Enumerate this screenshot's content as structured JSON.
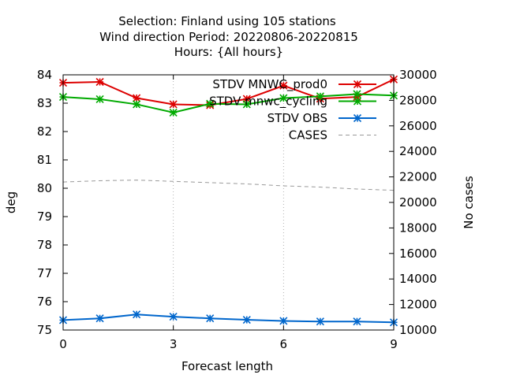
{
  "chart_data": {
    "type": "line",
    "title": [
      "Selection: Finland using   105 stations",
      "Wind direction   Period: 20220806-20220815",
      "Hours: {All hours}"
    ],
    "xlabel": "Forecast length",
    "ylabel": "deg",
    "y2label": "No cases",
    "xlim": [
      0,
      9
    ],
    "ylim": [
      75,
      84
    ],
    "y2lim": [
      10000,
      30000
    ],
    "xticks": [
      0,
      3,
      6,
      9
    ],
    "yticks": [
      75,
      76,
      77,
      78,
      79,
      80,
      81,
      82,
      83,
      84
    ],
    "y2ticks": [
      10000,
      12000,
      14000,
      16000,
      18000,
      20000,
      22000,
      24000,
      26000,
      28000,
      30000
    ],
    "grid": true,
    "legend_position": "top-right",
    "x": [
      0,
      1,
      2,
      3,
      4,
      5,
      6,
      7,
      8,
      9
    ],
    "series": [
      {
        "name": "STDV MNWC_prod0",
        "axis": "y",
        "color": "#dd0000",
        "marker": "x",
        "dashed": false,
        "values": [
          83.72,
          83.75,
          83.18,
          82.96,
          82.93,
          83.15,
          83.62,
          83.16,
          83.22,
          83.84
        ]
      },
      {
        "name": "STDV mnwc_cycling",
        "axis": "y",
        "color": "#00aa00",
        "marker": "x",
        "dashed": false,
        "values": [
          83.22,
          83.14,
          82.96,
          82.67,
          82.98,
          82.96,
          83.18,
          83.24,
          83.32,
          83.27
        ]
      },
      {
        "name": "STDV OBS",
        "axis": "y",
        "color": "#0066cc",
        "marker": "x",
        "dashed": false,
        "values": [
          75.35,
          75.41,
          75.55,
          75.47,
          75.41,
          75.36,
          75.32,
          75.3,
          75.3,
          75.27
        ]
      },
      {
        "name": "CASES",
        "axis": "y2",
        "color": "#999999",
        "marker": "none",
        "dashed": true,
        "values": [
          21600,
          21700,
          21750,
          21650,
          21550,
          21450,
          21300,
          21200,
          21050,
          20950
        ]
      }
    ]
  }
}
